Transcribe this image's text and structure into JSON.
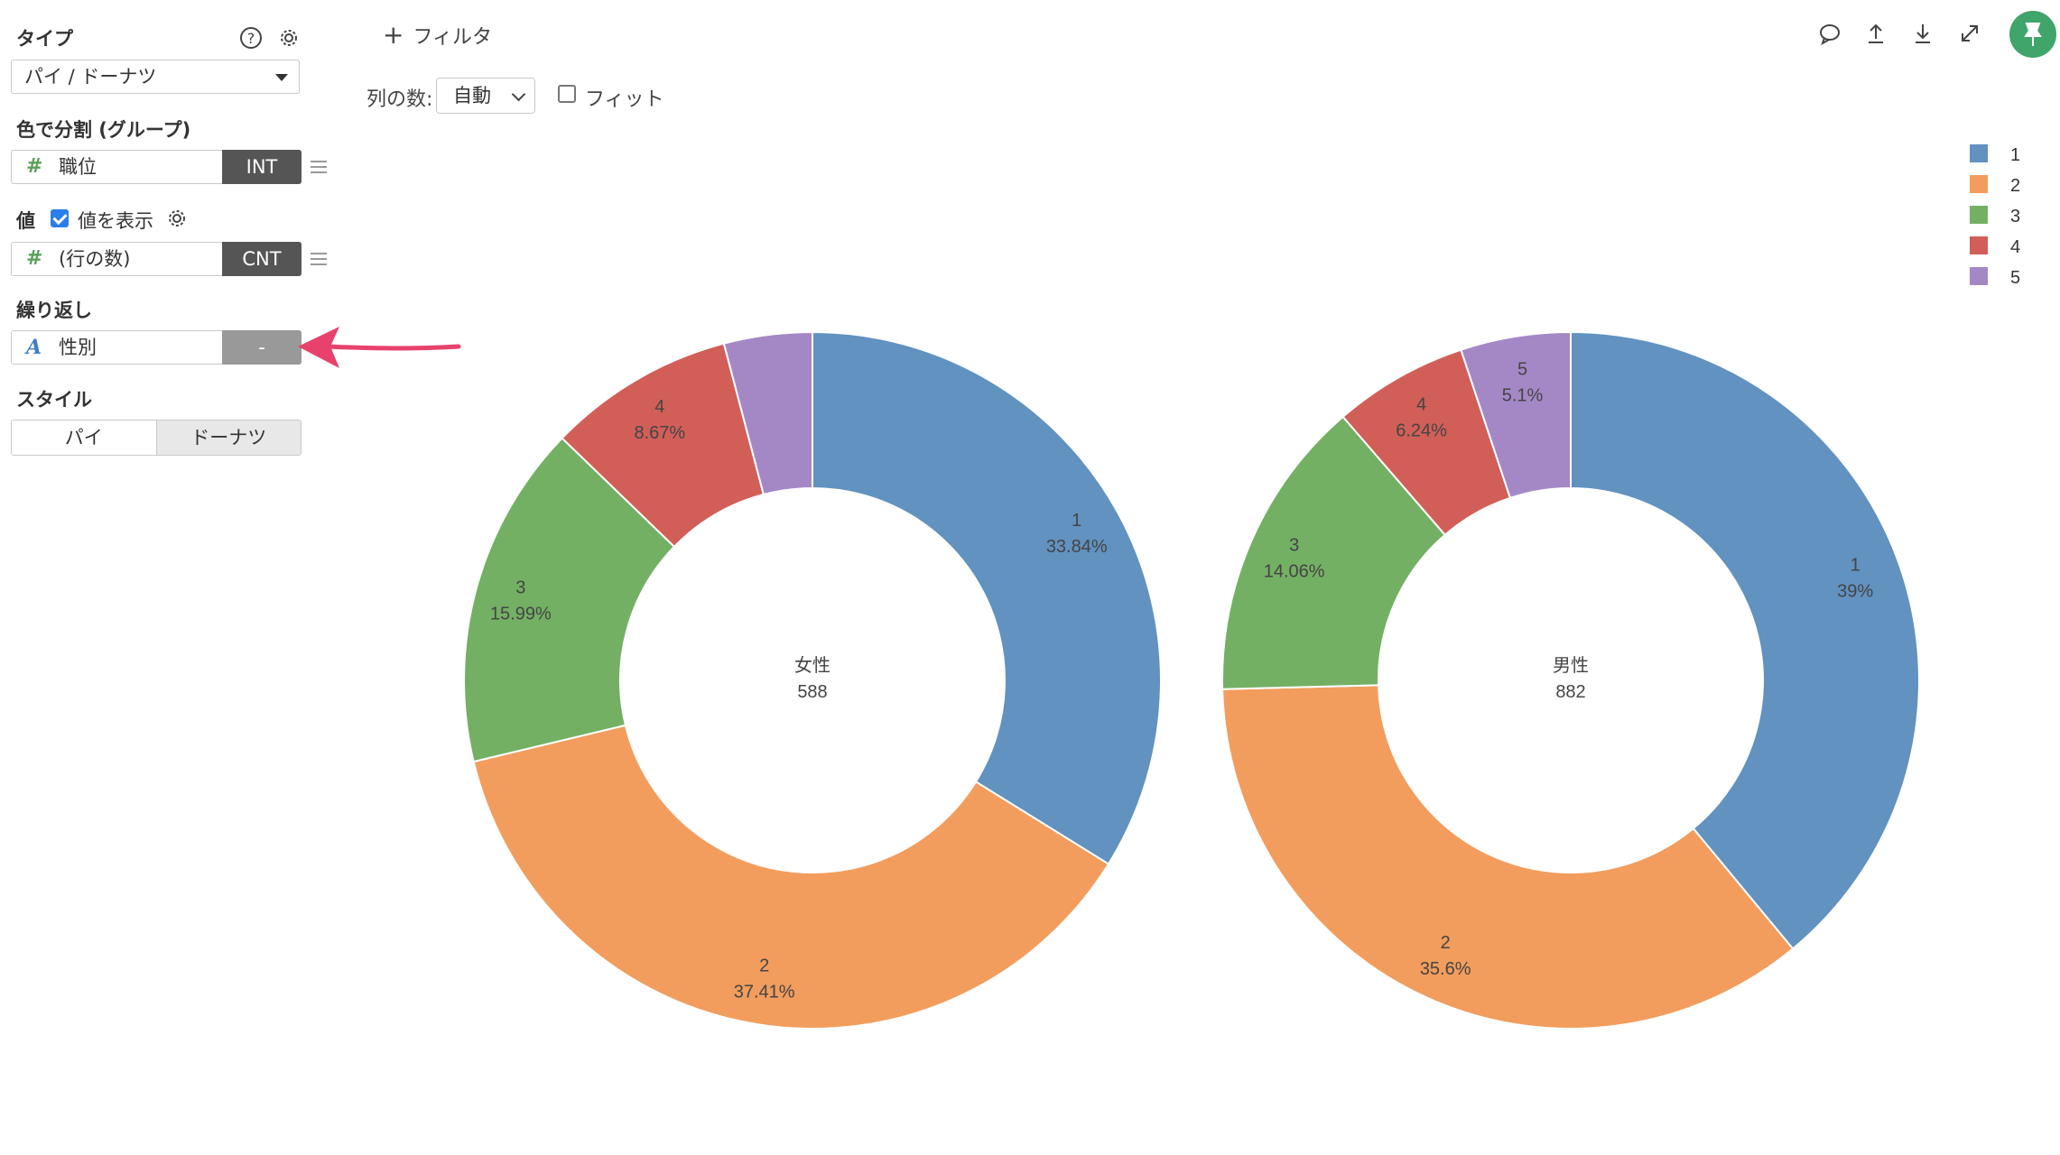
{
  "sidebar": {
    "type_label": "タイプ",
    "type_value": "パイ / ドーナツ",
    "color_label": "色で分割 (グループ)",
    "color_field": {
      "name": "職位",
      "tag": "INT"
    },
    "value_label": "値",
    "value_show_label": "値を表示",
    "value_field": {
      "name": "(行の数)",
      "tag": "CNT"
    },
    "repeat_label": "繰り返し",
    "repeat_field": {
      "name": "性別",
      "tag": "-"
    },
    "style_label": "スタイル",
    "style_options": [
      "パイ",
      "ドーナツ"
    ],
    "style_selected": "ドーナツ"
  },
  "toolbar": {
    "filter_label": "フィルタ",
    "columns_label": "列の数:",
    "columns_value": "自動",
    "fit_label": "フィット"
  },
  "colors": {
    "1": "#6192c0",
    "2": "#f29d5d",
    "3": "#74b064",
    "4": "#d15f58",
    "5": "#a488c6",
    "arrow": "#e8416c",
    "pin": "#3fa56b"
  },
  "chart_data": [
    {
      "type": "pie",
      "style": "donut",
      "center_title": "女性",
      "center_value": "588",
      "categories": [
        "1",
        "2",
        "3",
        "4",
        "5"
      ],
      "values": [
        33.84,
        37.41,
        15.99,
        8.67,
        4.09
      ],
      "labels": [
        "33.84%",
        "37.41%",
        "15.99%",
        "8.67%",
        ""
      ]
    },
    {
      "type": "pie",
      "style": "donut",
      "center_title": "男性",
      "center_value": "882",
      "categories": [
        "1",
        "2",
        "3",
        "4",
        "5"
      ],
      "values": [
        39,
        35.6,
        14.06,
        6.24,
        5.1
      ],
      "labels": [
        "39%",
        "35.6%",
        "14.06%",
        "6.24%",
        "5.1%"
      ]
    }
  ],
  "legend": {
    "placement": "top-right",
    "entries": [
      "1",
      "2",
      "3",
      "4",
      "5"
    ]
  }
}
